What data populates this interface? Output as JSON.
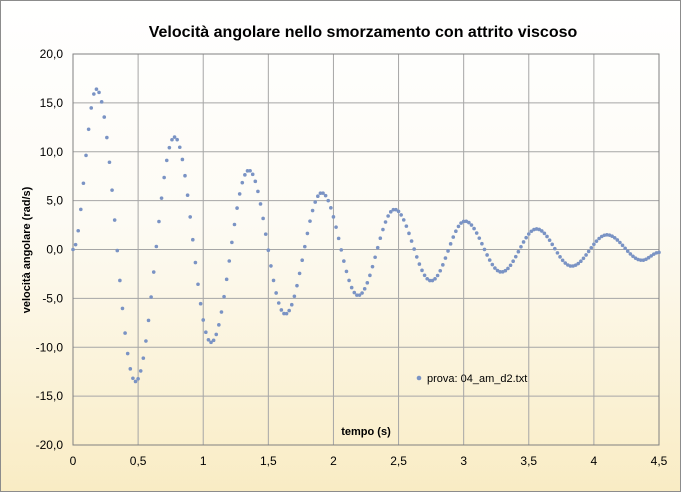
{
  "chart_data": {
    "type": "scatter",
    "title": "Velocità  angolare  nello  smorzamento  con attrito viscoso",
    "xlabel": "tempo (s)",
    "ylabel": "velocità angolare (rad/s)",
    "xlim": [
      0,
      4.5
    ],
    "ylim": [
      -20,
      20
    ],
    "x_ticks": [
      "0",
      "0,5",
      "1",
      "1,5",
      "2",
      "2,5",
      "3",
      "3,5",
      "4",
      "4,5"
    ],
    "y_ticks": [
      "20,0",
      "15,0",
      "10,0",
      "5,0",
      "0,0",
      "-5,0",
      "-10,0",
      "-15,0",
      "-20,0"
    ],
    "grid": true,
    "legend_position": "inside-lower-right",
    "marker_color": "#7a93c4",
    "series": [
      {
        "name": "prova: 04_am_d2.txt",
        "description": "damped oscillation sampled every 0.02 s; extrema listed below",
        "x_start": 0.0,
        "x_end": 4.5,
        "x_step": 0.02,
        "extrema": [
          {
            "x": 0.0,
            "y": 0.0
          },
          {
            "x": 0.18,
            "y": 16.4
          },
          {
            "x": 0.48,
            "y": -13.5
          },
          {
            "x": 0.78,
            "y": 11.5
          },
          {
            "x": 1.06,
            "y": -9.5
          },
          {
            "x": 1.35,
            "y": 8.1
          },
          {
            "x": 1.63,
            "y": -6.6
          },
          {
            "x": 1.91,
            "y": 5.8
          },
          {
            "x": 2.19,
            "y": -4.7
          },
          {
            "x": 2.47,
            "y": 4.1
          },
          {
            "x": 2.75,
            "y": -3.2
          },
          {
            "x": 3.01,
            "y": 2.9
          },
          {
            "x": 3.29,
            "y": -2.3
          },
          {
            "x": 3.56,
            "y": 2.1
          },
          {
            "x": 3.83,
            "y": -1.7
          },
          {
            "x": 4.1,
            "y": 1.5
          },
          {
            "x": 4.37,
            "y": -1.1
          },
          {
            "x": 4.5,
            "y": -0.3
          }
        ]
      }
    ]
  }
}
